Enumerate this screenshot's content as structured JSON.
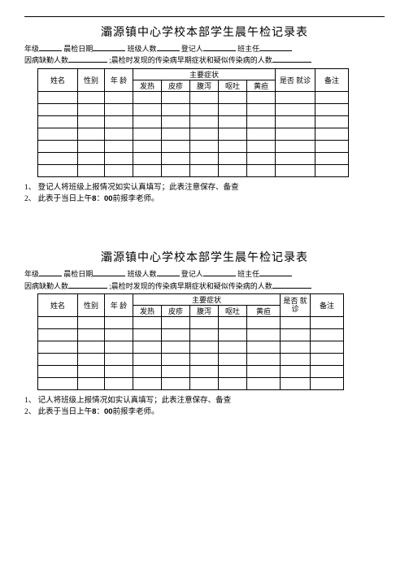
{
  "title": "灞源镇中心学校本部学生晨午检记录表",
  "meta": {
    "grade_label": "年级",
    "date_label": "晨检日期",
    "class_size_label": "班级人数",
    "recorder_label": "登记人",
    "head_teacher_label": "班主任",
    "absent_label": "因病缺勤人数",
    "found_label": ";晨检时发现的传染病早期症状和疑似传染病的人数"
  },
  "table1": {
    "cols": {
      "name": "姓名",
      "sex": "性别",
      "age": "年 龄",
      "symptom_group": "主要症状",
      "fever": "发热",
      "rash": "皮疹",
      "diarrhea": "腹泻",
      "vomit": "呕吐",
      "jaundice": "黄疸",
      "visit": "是否 就诊",
      "remark": "备注"
    },
    "col_widths": {
      "name": 48,
      "sex": 32,
      "age": 34,
      "fever": 34,
      "rash": 34,
      "diarrhea": 34,
      "vomit": 34,
      "jaundice": 34,
      "visit": 48,
      "remark": 40
    },
    "blank_rows": 7
  },
  "table2": {
    "cols": {
      "name": "姓名",
      "sex": "性别",
      "age": "年 龄",
      "symptom_group": "主要症状",
      "fever": "发热",
      "rash": "皮疹",
      "diarrhea": "腹泻",
      "vomit": "呕吐",
      "jaundice": "黄疸",
      "visit_l1": "是否 就",
      "visit_l2": "诊",
      "remark": "备注"
    },
    "col_widths": {
      "name": 48,
      "sex": 32,
      "age": 34,
      "fever": 34,
      "rash": 34,
      "diarrhea": 34,
      "vomit": 34,
      "jaundice": 40,
      "visit": 36,
      "remark": 40
    },
    "blank_rows": 6
  },
  "notes1": {
    "n1_pre": "1、 登记人将班级上报情况如实认真填写；此表注意保存、备查",
    "n2_pre": "2、 此表于当日上午",
    "n2_time_a": "8",
    "n2_colon": "：",
    "n2_time_b": "00",
    "n2_post": "前报李老师。"
  },
  "notes2": {
    "n1_pre": "1、 记人将班级上报情况如实认真填写；此表注意保存、备查",
    "n2_pre": "2、 此表于当日上午",
    "n2_time_a": "8",
    "n2_colon": "：",
    "n2_time_b": "00",
    "n2_post": "前报李老师。"
  }
}
